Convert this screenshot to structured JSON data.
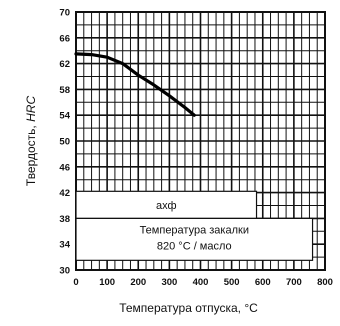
{
  "chart_data": {
    "type": "line",
    "xlabel": "Температура отпуска, °C",
    "ylabel_main": "Твердость, ",
    "ylabel_italic": "HRC",
    "xlim": [
      0,
      800
    ],
    "ylim": [
      30,
      70
    ],
    "x_ticks": [
      0,
      100,
      200,
      300,
      400,
      500,
      600,
      700,
      800
    ],
    "y_ticks": [
      30,
      34,
      38,
      42,
      46,
      50,
      54,
      58,
      62,
      66,
      70
    ],
    "grid": true,
    "series": [
      {
        "x": [
          0,
          50,
          100,
          150,
          200,
          250,
          300,
          350,
          380
        ],
        "y": [
          63.5,
          63.4,
          63.0,
          62.0,
          60.2,
          58.7,
          57.0,
          55.2,
          54.0
        ]
      }
    ],
    "annotations": {
      "steel_label": "ахф",
      "quench_line1": "Температура закалки",
      "quench_line2": "820 °C / масло"
    }
  }
}
